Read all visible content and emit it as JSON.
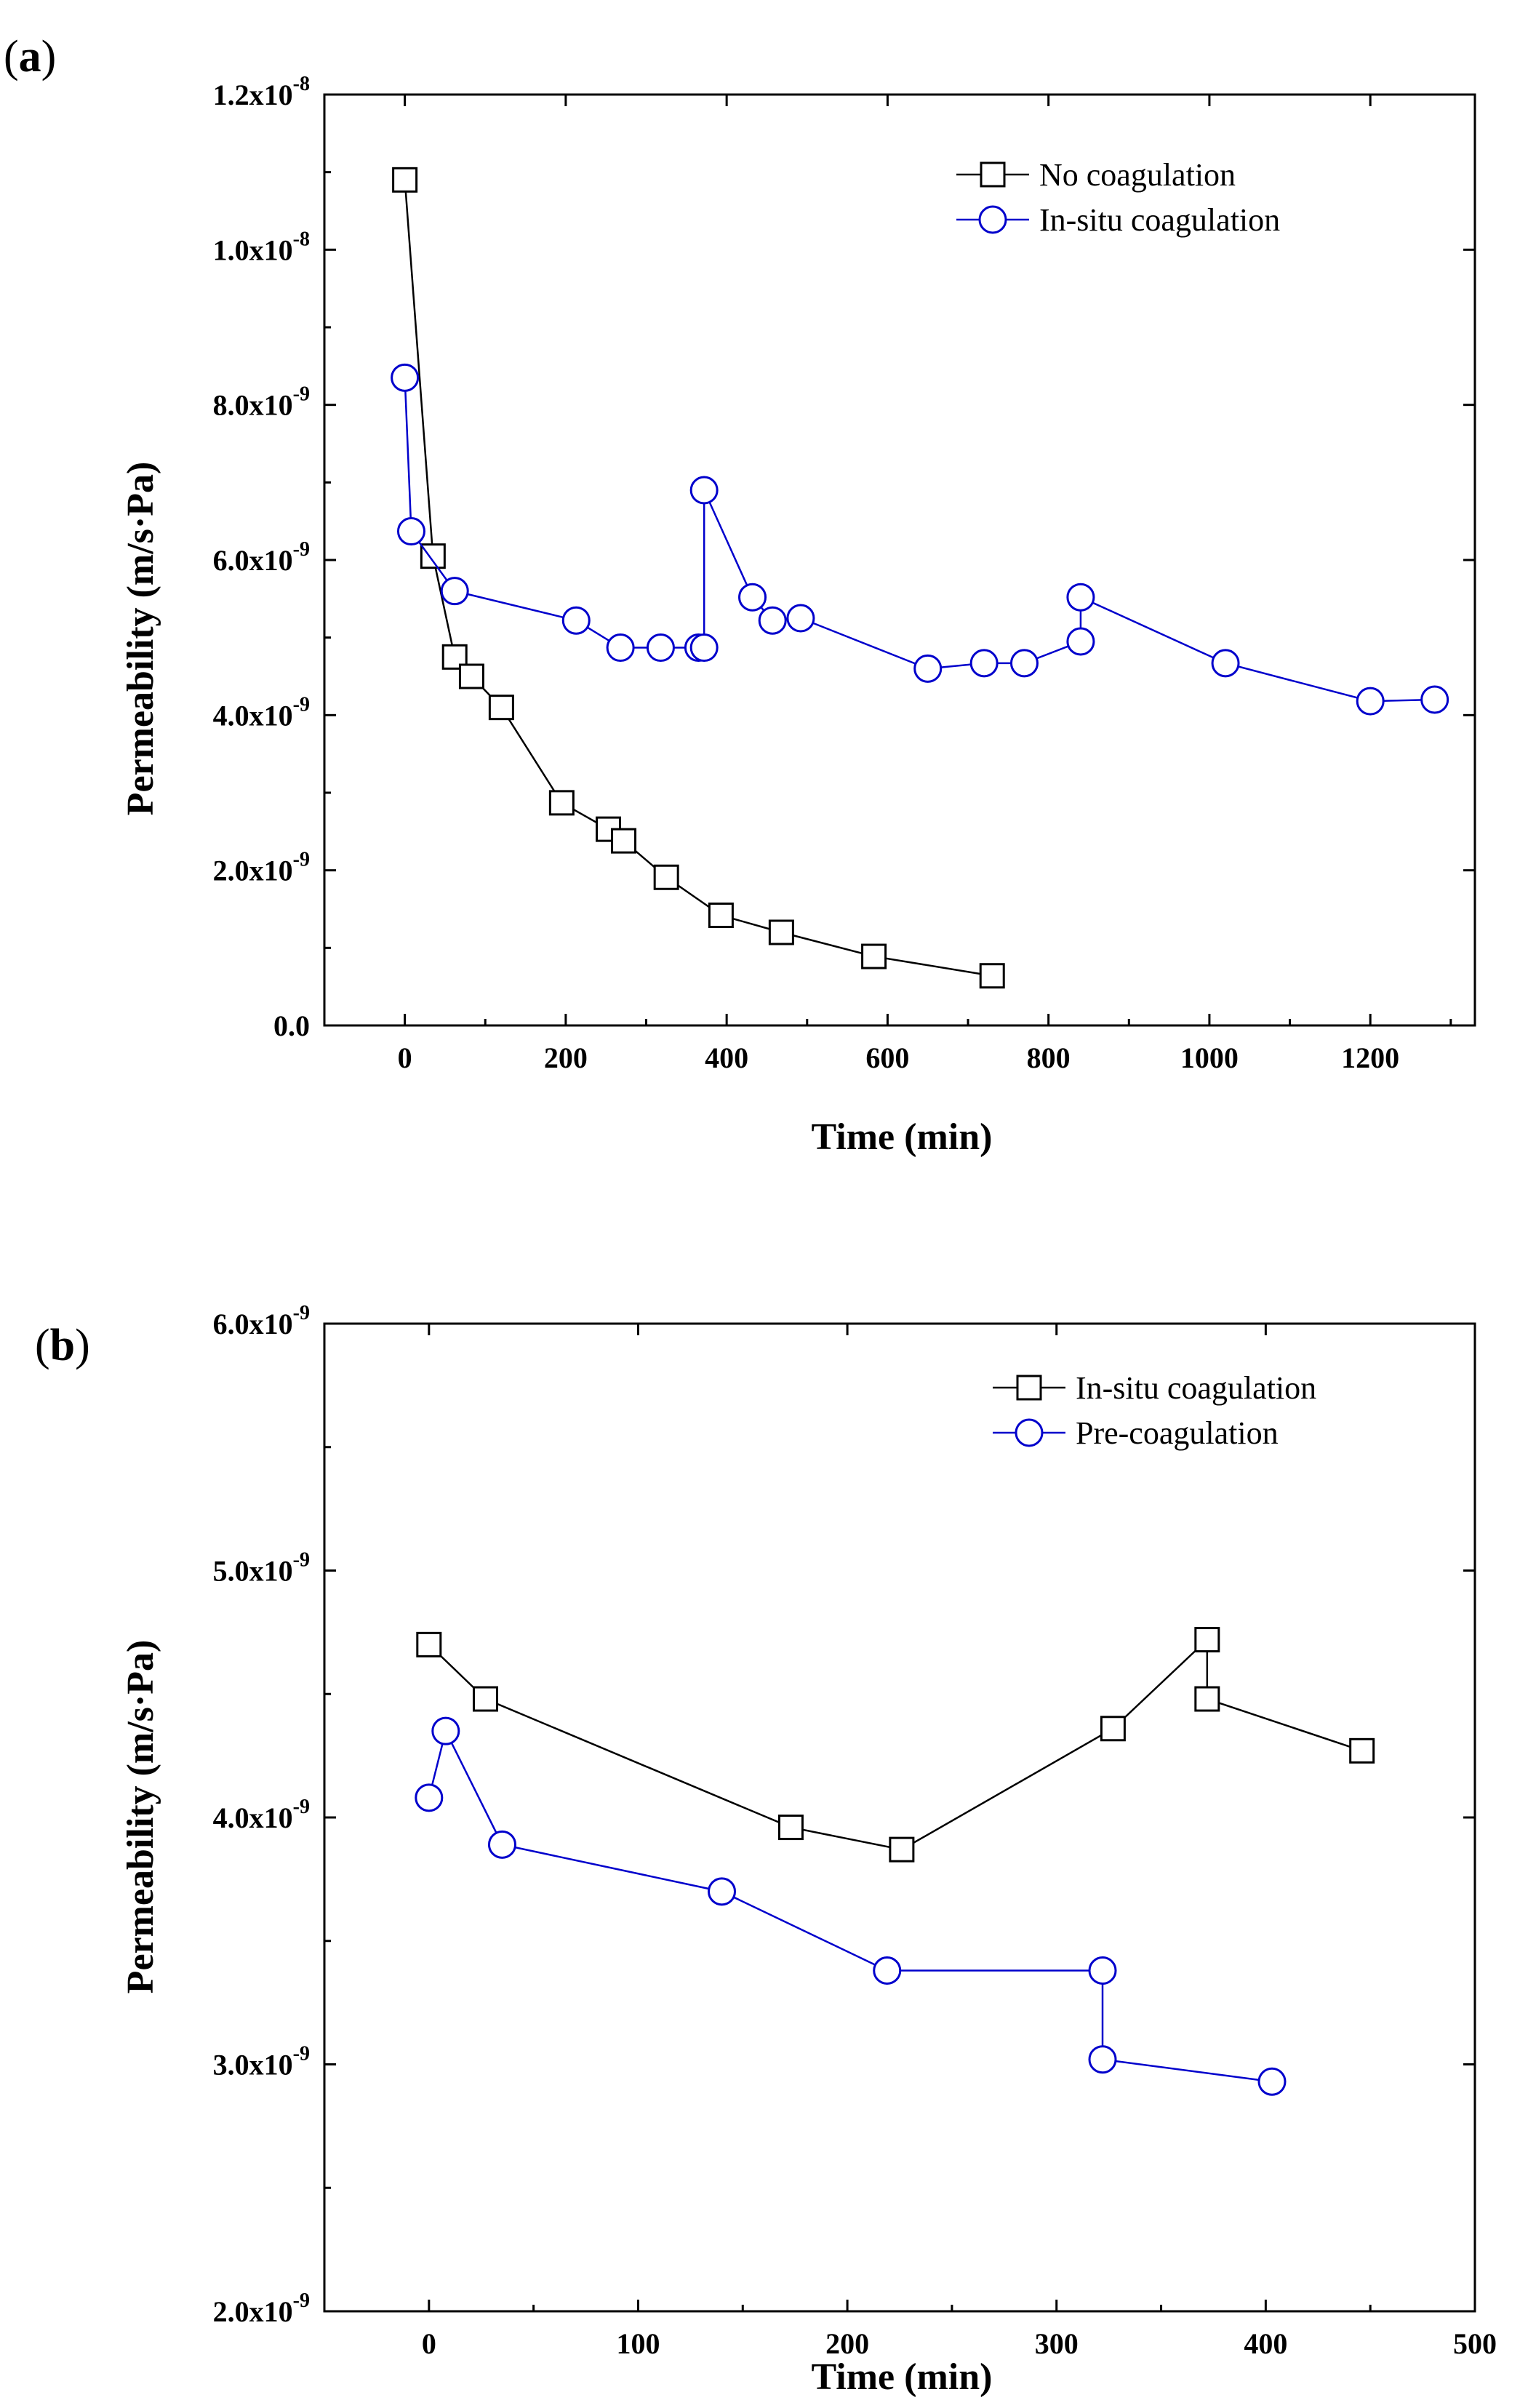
{
  "chart_data": [
    {
      "type": "line",
      "panel_label_open": "(",
      "panel_label_letter": "a",
      "panel_label_close": ")",
      "xlabel": "Time (min)",
      "ylabel": "Permeability (m/s·Pa)",
      "xlim": [
        -100,
        1330
      ],
      "ylim": [
        0,
        1.2e-08
      ],
      "xticks": [
        0,
        200,
        400,
        600,
        800,
        1000,
        1200
      ],
      "xtick_labels": [
        "0",
        "200",
        "400",
        "600",
        "800",
        "1000",
        "1200"
      ],
      "yticks": [
        0,
        2e-09,
        4e-09,
        6e-09,
        8e-09,
        1e-08,
        1.2e-08
      ],
      "ytick_labels": [
        {
          "base": "0.0",
          "exp": ""
        },
        {
          "base": "2.0x10",
          "exp": "-9"
        },
        {
          "base": "4.0x10",
          "exp": "-9"
        },
        {
          "base": "6.0x10",
          "exp": "-9"
        },
        {
          "base": "8.0x10",
          "exp": "-9"
        },
        {
          "base": "1.0x10",
          "exp": "-8"
        },
        {
          "base": "1.2x10",
          "exp": "-8"
        }
      ],
      "legend_position": "top-right",
      "series": [
        {
          "name": "No coagulation",
          "marker": "square",
          "color": "#000000",
          "x": [
            0,
            35,
            62,
            83,
            120,
            195,
            253,
            272,
            325,
            393,
            468,
            583,
            730
          ],
          "y": [
            1.09e-08,
            6.05e-09,
            4.75e-09,
            4.5e-09,
            4.1e-09,
            2.87e-09,
            2.53e-09,
            2.38e-09,
            1.91e-09,
            1.42e-09,
            1.2e-09,
            8.9e-10,
            6.4e-10
          ]
        },
        {
          "name": "In-situ coagulation",
          "marker": "circle",
          "color": "#0000cc",
          "x": [
            0,
            8,
            62,
            213,
            268,
            318,
            365,
            372,
            372,
            432,
            457,
            492,
            650,
            720,
            770,
            840,
            840,
            1020,
            1200,
            1280
          ],
          "y": [
            8.35e-09,
            6.37e-09,
            5.6e-09,
            5.22e-09,
            4.87e-09,
            4.87e-09,
            4.87e-09,
            4.87e-09,
            6.9e-09,
            5.52e-09,
            5.22e-09,
            5.25e-09,
            4.6e-09,
            4.67e-09,
            4.67e-09,
            4.95e-09,
            5.52e-09,
            4.67e-09,
            4.18e-09,
            4.2e-09
          ]
        }
      ]
    },
    {
      "type": "line",
      "panel_label_open": "(",
      "panel_label_letter": "b",
      "panel_label_close": ")",
      "xlabel": "Time (min)",
      "ylabel": "Permeability (m/s·Pa)",
      "xlim": [
        -50,
        500
      ],
      "ylim": [
        2e-09,
        6e-09
      ],
      "xticks": [
        0,
        100,
        200,
        300,
        400,
        500
      ],
      "xtick_labels": [
        "0",
        "100",
        "200",
        "300",
        "400",
        "500"
      ],
      "yticks": [
        2e-09,
        3e-09,
        4e-09,
        5e-09,
        6e-09
      ],
      "ytick_labels": [
        {
          "base": "2.0x10",
          "exp": "-9"
        },
        {
          "base": "3.0x10",
          "exp": "-9"
        },
        {
          "base": "4.0x10",
          "exp": "-9"
        },
        {
          "base": "5.0x10",
          "exp": "-9"
        },
        {
          "base": "6.0x10",
          "exp": "-9"
        }
      ],
      "legend_position": "top-right",
      "series": [
        {
          "name": "In-situ coagulation",
          "marker": "square",
          "color": "#000000",
          "x": [
            0,
            27,
            173,
            226,
            327,
            372,
            372,
            446
          ],
          "y": [
            4.7e-09,
            4.48e-09,
            3.96e-09,
            3.87e-09,
            4.36e-09,
            4.72e-09,
            4.48e-09,
            4.27e-09
          ]
        },
        {
          "name": "Pre-coagulation",
          "marker": "circle",
          "color": "#0000cc",
          "x": [
            0,
            8,
            35,
            140,
            219,
            322,
            322,
            403
          ],
          "y": [
            4.08e-09,
            4.35e-09,
            3.89e-09,
            3.7e-09,
            3.38e-09,
            3.38e-09,
            3.02e-09,
            2.93e-09
          ]
        }
      ]
    }
  ]
}
